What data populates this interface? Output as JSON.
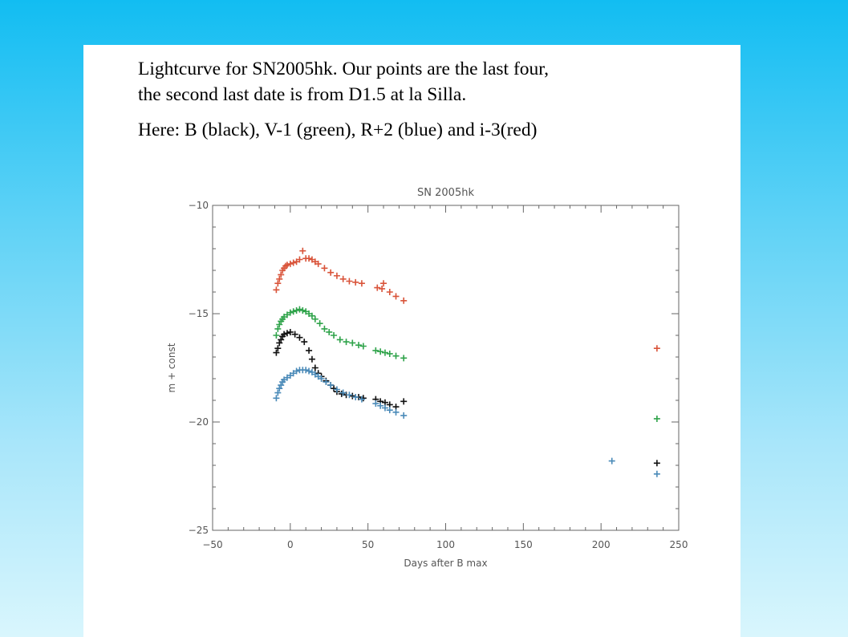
{
  "caption": {
    "line1": "Lightcurve for SN2005hk. Our points are the last four,",
    "line2": "the second last date is from D1.5 at la Silla.",
    "line3": "Here: B (black), V-1 (green), R+2 (blue) and i-3(red)"
  },
  "chart_data": {
    "type": "scatter",
    "title": "SN 2005hk",
    "xlabel": "Days after B max",
    "ylabel": "m + const",
    "xlim": [
      -50,
      250
    ],
    "ylim": [
      -10,
      -25
    ],
    "xticks": [
      -50,
      0,
      50,
      100,
      150,
      200,
      250
    ],
    "yticks": [
      -10,
      -15,
      -20,
      -25
    ],
    "grid": false,
    "series": [
      {
        "color": "#d9543a",
        "points": [
          [
            -9,
            -13.9
          ],
          [
            -8,
            -13.6
          ],
          [
            -7,
            -13.4
          ],
          [
            -6,
            -13.2
          ],
          [
            -5,
            -13.0
          ],
          [
            -4,
            -12.9
          ],
          [
            -3,
            -12.8
          ],
          [
            -2,
            -12.75
          ],
          [
            0,
            -12.7
          ],
          [
            2,
            -12.65
          ],
          [
            4,
            -12.6
          ],
          [
            6,
            -12.5
          ],
          [
            8,
            -12.1
          ],
          [
            10,
            -12.45
          ],
          [
            12,
            -12.45
          ],
          [
            14,
            -12.5
          ],
          [
            16,
            -12.6
          ],
          [
            18,
            -12.7
          ],
          [
            22,
            -12.9
          ],
          [
            26,
            -13.1
          ],
          [
            30,
            -13.25
          ],
          [
            34,
            -13.4
          ],
          [
            38,
            -13.5
          ],
          [
            42,
            -13.55
          ],
          [
            46,
            -13.6
          ],
          [
            56,
            -13.8
          ],
          [
            59,
            -13.85
          ],
          [
            60,
            -13.6
          ],
          [
            64,
            -14.0
          ],
          [
            68,
            -14.2
          ],
          [
            73,
            -14.4
          ],
          [
            236,
            -16.6
          ]
        ]
      },
      {
        "color": "#2fa34a",
        "points": [
          [
            -9,
            -16.0
          ],
          [
            -8,
            -15.7
          ],
          [
            -7,
            -15.5
          ],
          [
            -6,
            -15.35
          ],
          [
            -5,
            -15.25
          ],
          [
            -4,
            -15.15
          ],
          [
            -2,
            -15.05
          ],
          [
            0,
            -14.95
          ],
          [
            2,
            -14.9
          ],
          [
            4,
            -14.85
          ],
          [
            6,
            -14.8
          ],
          [
            8,
            -14.85
          ],
          [
            10,
            -14.9
          ],
          [
            12,
            -15.0
          ],
          [
            14,
            -15.1
          ],
          [
            16,
            -15.25
          ],
          [
            19,
            -15.45
          ],
          [
            22,
            -15.7
          ],
          [
            25,
            -15.85
          ],
          [
            28,
            -16.0
          ],
          [
            32,
            -16.2
          ],
          [
            36,
            -16.3
          ],
          [
            40,
            -16.35
          ],
          [
            44,
            -16.45
          ],
          [
            47,
            -16.5
          ],
          [
            55,
            -16.7
          ],
          [
            58,
            -16.75
          ],
          [
            61,
            -16.8
          ],
          [
            64,
            -16.85
          ],
          [
            68,
            -16.95
          ],
          [
            73,
            -17.05
          ],
          [
            236,
            -19.85
          ]
        ]
      },
      {
        "color": "#111111",
        "points": [
          [
            -9,
            -16.8
          ],
          [
            -8,
            -16.6
          ],
          [
            -7,
            -16.35
          ],
          [
            -6,
            -16.2
          ],
          [
            -5,
            -16.05
          ],
          [
            -4,
            -15.95
          ],
          [
            -2,
            -15.9
          ],
          [
            0,
            -15.85
          ],
          [
            3,
            -15.95
          ],
          [
            6,
            -16.1
          ],
          [
            9,
            -16.3
          ],
          [
            12,
            -16.7
          ],
          [
            14,
            -17.1
          ],
          [
            16,
            -17.5
          ],
          [
            18,
            -17.75
          ],
          [
            20,
            -17.9
          ],
          [
            23,
            -18.1
          ],
          [
            26,
            -18.3
          ],
          [
            28,
            -18.45
          ],
          [
            30,
            -18.6
          ],
          [
            33,
            -18.7
          ],
          [
            36,
            -18.75
          ],
          [
            40,
            -18.8
          ],
          [
            44,
            -18.85
          ],
          [
            47,
            -18.9
          ],
          [
            55,
            -18.95
          ],
          [
            58,
            -19.05
          ],
          [
            61,
            -19.1
          ],
          [
            64,
            -19.2
          ],
          [
            68,
            -19.3
          ],
          [
            73,
            -19.05
          ],
          [
            236,
            -21.9
          ]
        ]
      },
      {
        "color": "#4a8ab8",
        "points": [
          [
            -9,
            -18.9
          ],
          [
            -8,
            -18.65
          ],
          [
            -7,
            -18.45
          ],
          [
            -6,
            -18.3
          ],
          [
            -5,
            -18.15
          ],
          [
            -4,
            -18.05
          ],
          [
            -2,
            -17.95
          ],
          [
            0,
            -17.85
          ],
          [
            2,
            -17.75
          ],
          [
            4,
            -17.65
          ],
          [
            6,
            -17.6
          ],
          [
            8,
            -17.6
          ],
          [
            10,
            -17.6
          ],
          [
            12,
            -17.65
          ],
          [
            14,
            -17.7
          ],
          [
            16,
            -17.8
          ],
          [
            18,
            -17.9
          ],
          [
            20,
            -18.0
          ],
          [
            23,
            -18.15
          ],
          [
            26,
            -18.3
          ],
          [
            30,
            -18.5
          ],
          [
            34,
            -18.65
          ],
          [
            38,
            -18.75
          ],
          [
            42,
            -18.85
          ],
          [
            46,
            -18.95
          ],
          [
            55,
            -19.15
          ],
          [
            58,
            -19.25
          ],
          [
            61,
            -19.35
          ],
          [
            64,
            -19.45
          ],
          [
            68,
            -19.55
          ],
          [
            73,
            -19.7
          ],
          [
            207,
            -21.8
          ],
          [
            236,
            -22.4
          ]
        ]
      }
    ]
  }
}
